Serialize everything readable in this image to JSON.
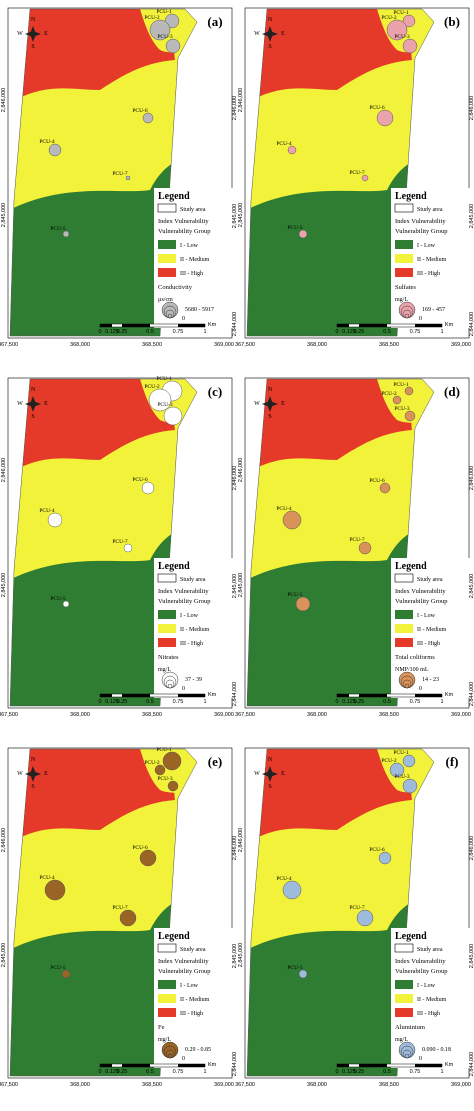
{
  "panels": [
    {
      "label": "(a)",
      "parameter": "Conductivity",
      "unit": "µs/cm",
      "range": "5680 - 5917",
      "zero": "0",
      "symbol_color": "#b9b9b9"
    },
    {
      "label": "(b)",
      "parameter": "Sulfates",
      "unit": "mg/L",
      "range": "169 - 457",
      "zero": "0",
      "symbol_color": "#eaa2ab"
    },
    {
      "label": "(c)",
      "parameter": "Nitrates",
      "unit": "mg/L",
      "range": "37 - 39",
      "zero": "0",
      "symbol_color": "#ffffff"
    },
    {
      "label": "(d)",
      "parameter": "Total coliforms",
      "unit": "NMP/100 mL",
      "range": "14 - 23",
      "zero": "0",
      "symbol_color": "#d9925a"
    },
    {
      "label": "(e)",
      "parameter": "Fe",
      "unit": "mg/L",
      "range": "0.29 - 0.85",
      "zero": "0",
      "symbol_color": "#9a6424"
    },
    {
      "label": "(f)",
      "parameter": "Aluminium",
      "unit": "mg/L",
      "range": "0.090 - 0.18",
      "zero": "0",
      "symbol_color": "#9fbbdc"
    }
  ],
  "compass": [
    "N",
    "W",
    "E",
    "S"
  ],
  "sites": [
    "PCU-1",
    "PCU-2",
    "PCU-3",
    "PCU-4",
    "PCU-5",
    "PCU-6",
    "PCU-7"
  ],
  "legend": {
    "title": "Legend",
    "study_area": "Study area",
    "index": "Index Vulnerability",
    "group": "Vulnerability Group",
    "classes": [
      {
        "name": "I - Low",
        "color": "#2e7d32"
      },
      {
        "name": "II - Medium",
        "color": "#f2f23a"
      },
      {
        "name": "III - High",
        "color": "#e53a2a"
      }
    ]
  },
  "x_labels": [
    "367,500",
    "368,000",
    "368,500",
    "369,000"
  ],
  "y_labels_left": [
    "2,846,000",
    "2,845,000"
  ],
  "y_labels_right": [
    "2,846,000",
    "2,845,000",
    "2,844,000"
  ],
  "scale": [
    "0",
    "0.125",
    "0.25",
    "0.5",
    "0.75",
    "1"
  ],
  "scale_unit": "Km"
}
